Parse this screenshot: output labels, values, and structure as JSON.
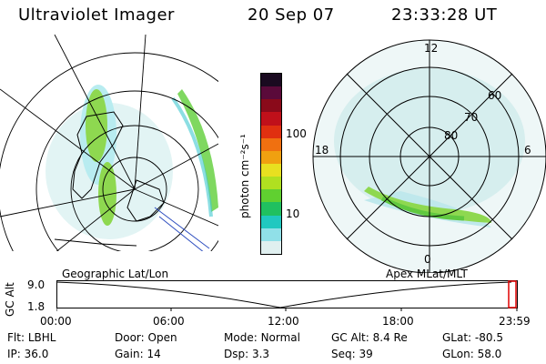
{
  "header": {
    "instrument": "Ultraviolet Imager",
    "date": "20 Sep 07",
    "time": "23:33:28 UT"
  },
  "colorbar": {
    "unit_label": "photon cm⁻²s⁻¹",
    "ticks": [
      "100",
      "10"
    ],
    "colors": [
      "#1a0a20",
      "#5a0a3a",
      "#8a0a1a",
      "#c0101a",
      "#e03010",
      "#f07010",
      "#f0a010",
      "#e8e020",
      "#b0e020",
      "#60d030",
      "#20c060",
      "#20c8c0",
      "#90e0e8",
      "#e0f0f0"
    ]
  },
  "left_panel": {
    "label": "Geographic Lat/Lon"
  },
  "right_panel": {
    "label": "Apex MLat/MLT",
    "mlt_labels": {
      "top": "12",
      "left": "18",
      "right": "6",
      "bottom": "0"
    },
    "lat_labels": [
      "60",
      "70",
      "80"
    ]
  },
  "altitude_plot": {
    "ylabel": "GC Alt",
    "yticks": [
      "9.0",
      "1.8"
    ],
    "xticks": [
      "00:00",
      "06:00",
      "12:00",
      "18:00",
      "23:59"
    ]
  },
  "status": [
    [
      {
        "label": "Flt:",
        "value": "LBHL"
      },
      {
        "label": "Door:",
        "value": "Open"
      },
      {
        "label": "Mode:",
        "value": "Normal"
      },
      {
        "label": "GC Alt:",
        "value": "8.4 Re"
      },
      {
        "label": "GLat:",
        "value": "-80.5"
      }
    ],
    [
      {
        "label": "IP:",
        "value": "36.0"
      },
      {
        "label": "Gain:",
        "value": "14"
      },
      {
        "label": "Dsp:",
        "value": "3.3"
      },
      {
        "label": "Seq:",
        "value": "39"
      },
      {
        "label": "GLon:",
        "value": "58.0"
      }
    ]
  ]
}
